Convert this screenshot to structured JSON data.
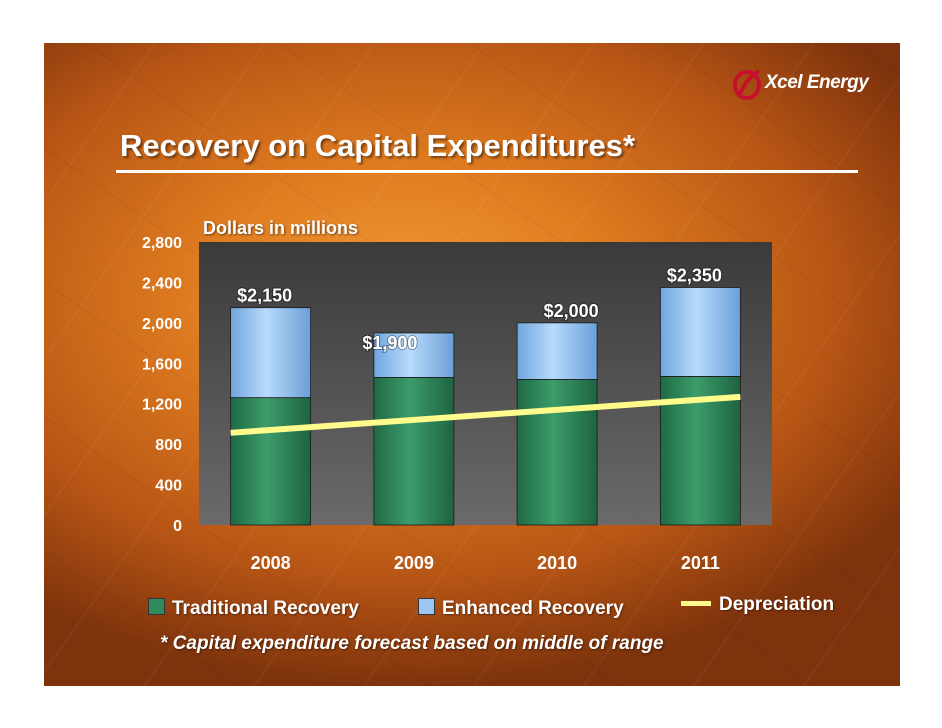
{
  "slide": {
    "title": "Recovery on Capital Expenditures*",
    "logo_text": "Xcel Energy",
    "logo_icon": "xcel-flame-logo",
    "footnote": "* Capital expenditure forecast based on middle of range"
  },
  "chart_data": {
    "type": "bar",
    "stacked": true,
    "subtitle": "Dollars in millions",
    "categories": [
      "2008",
      "2009",
      "2010",
      "2011"
    ],
    "series": [
      {
        "name": "Traditional Recovery",
        "type": "bar",
        "color": "#2f8a5c",
        "values": [
          1260,
          1460,
          1440,
          1470
        ]
      },
      {
        "name": "Enhanced Recovery",
        "type": "bar",
        "color": "#9cc6f2",
        "values": [
          890,
          440,
          560,
          880
        ]
      },
      {
        "name": "Depreciation",
        "type": "line",
        "color": "#fffa8c",
        "values": [
          940,
          1040,
          1130,
          1240
        ]
      }
    ],
    "totals": [
      2150,
      1900,
      2000,
      2350
    ],
    "total_labels": [
      "$2,150",
      "$1,900",
      "$2,000",
      "$2,350"
    ],
    "y_ticks": [
      "0",
      "400",
      "800",
      "1,200",
      "1,600",
      "2,000",
      "2,400",
      "2,800"
    ],
    "ylim": [
      0,
      2800
    ],
    "plot_background": "#454545",
    "grid": false,
    "legend_position": "bottom"
  }
}
